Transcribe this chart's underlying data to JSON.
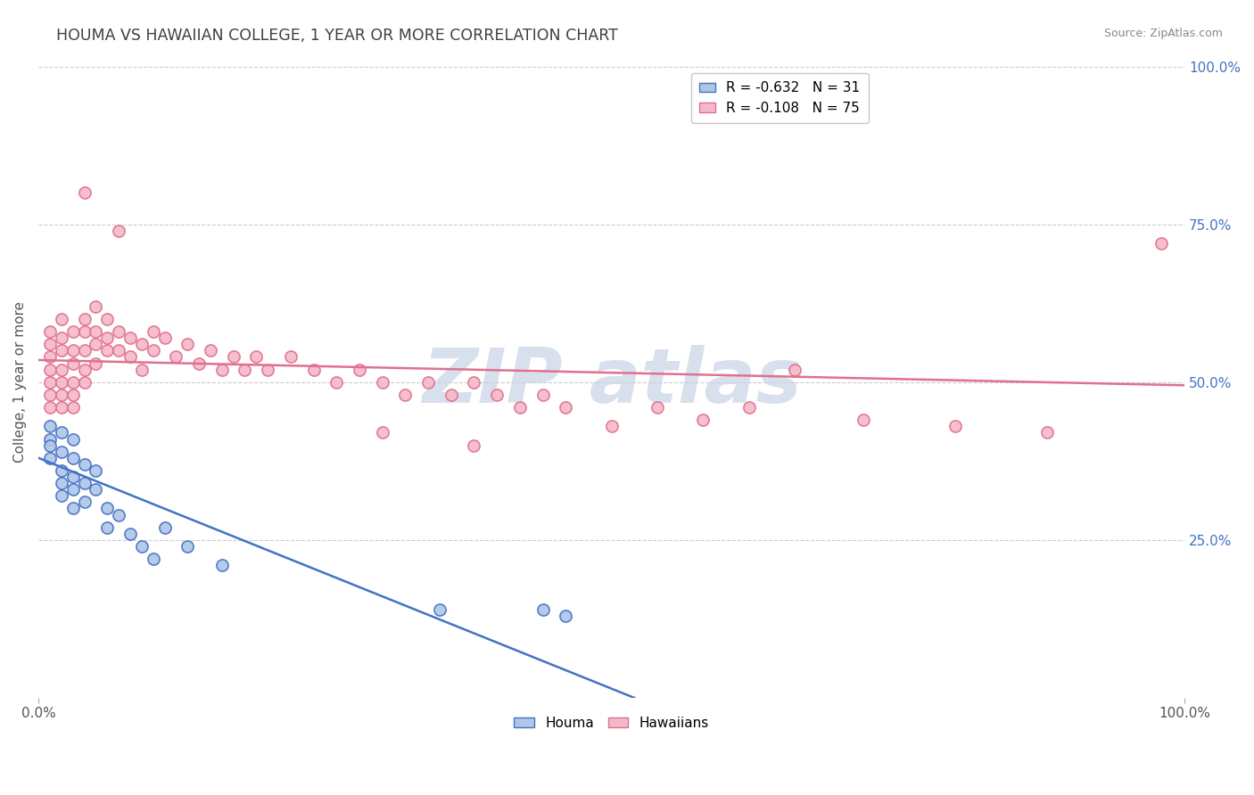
{
  "title": "HOUMA VS HAWAIIAN COLLEGE, 1 YEAR OR MORE CORRELATION CHART",
  "source": "Source: ZipAtlas.com",
  "ylabel": "College, 1 year or more",
  "xlim": [
    0.0,
    1.0
  ],
  "ylim": [
    0.0,
    1.0
  ],
  "houma_color": "#aec6e8",
  "hawaiians_color": "#f4b8c8",
  "houma_edge_color": "#4472c4",
  "hawaiians_edge_color": "#e07090",
  "houma_R": -0.632,
  "houma_N": 31,
  "hawaiians_R": -0.108,
  "hawaiians_N": 75,
  "houma_scatter": [
    [
      0.01,
      0.43
    ],
    [
      0.01,
      0.41
    ],
    [
      0.01,
      0.4
    ],
    [
      0.01,
      0.38
    ],
    [
      0.02,
      0.42
    ],
    [
      0.02,
      0.39
    ],
    [
      0.02,
      0.36
    ],
    [
      0.02,
      0.34
    ],
    [
      0.02,
      0.32
    ],
    [
      0.03,
      0.41
    ],
    [
      0.03,
      0.38
    ],
    [
      0.03,
      0.35
    ],
    [
      0.03,
      0.33
    ],
    [
      0.03,
      0.3
    ],
    [
      0.04,
      0.37
    ],
    [
      0.04,
      0.34
    ],
    [
      0.04,
      0.31
    ],
    [
      0.05,
      0.36
    ],
    [
      0.05,
      0.33
    ],
    [
      0.06,
      0.3
    ],
    [
      0.06,
      0.27
    ],
    [
      0.07,
      0.29
    ],
    [
      0.08,
      0.26
    ],
    [
      0.09,
      0.24
    ],
    [
      0.1,
      0.22
    ],
    [
      0.11,
      0.27
    ],
    [
      0.13,
      0.24
    ],
    [
      0.16,
      0.21
    ],
    [
      0.35,
      0.14
    ],
    [
      0.44,
      0.14
    ],
    [
      0.46,
      0.13
    ]
  ],
  "hawaiians_scatter": [
    [
      0.01,
      0.5
    ],
    [
      0.01,
      0.52
    ],
    [
      0.01,
      0.54
    ],
    [
      0.01,
      0.56
    ],
    [
      0.01,
      0.58
    ],
    [
      0.01,
      0.48
    ],
    [
      0.01,
      0.46
    ],
    [
      0.02,
      0.6
    ],
    [
      0.02,
      0.57
    ],
    [
      0.02,
      0.55
    ],
    [
      0.02,
      0.52
    ],
    [
      0.02,
      0.5
    ],
    [
      0.02,
      0.48
    ],
    [
      0.02,
      0.46
    ],
    [
      0.03,
      0.58
    ],
    [
      0.03,
      0.55
    ],
    [
      0.03,
      0.53
    ],
    [
      0.03,
      0.5
    ],
    [
      0.03,
      0.48
    ],
    [
      0.03,
      0.46
    ],
    [
      0.04,
      0.6
    ],
    [
      0.04,
      0.58
    ],
    [
      0.04,
      0.55
    ],
    [
      0.04,
      0.52
    ],
    [
      0.04,
      0.5
    ],
    [
      0.05,
      0.62
    ],
    [
      0.05,
      0.58
    ],
    [
      0.05,
      0.56
    ],
    [
      0.05,
      0.53
    ],
    [
      0.06,
      0.6
    ],
    [
      0.06,
      0.57
    ],
    [
      0.06,
      0.55
    ],
    [
      0.07,
      0.58
    ],
    [
      0.07,
      0.55
    ],
    [
      0.08,
      0.57
    ],
    [
      0.08,
      0.54
    ],
    [
      0.09,
      0.56
    ],
    [
      0.09,
      0.52
    ],
    [
      0.1,
      0.58
    ],
    [
      0.1,
      0.55
    ],
    [
      0.11,
      0.57
    ],
    [
      0.12,
      0.54
    ],
    [
      0.13,
      0.56
    ],
    [
      0.14,
      0.53
    ],
    [
      0.15,
      0.55
    ],
    [
      0.16,
      0.52
    ],
    [
      0.17,
      0.54
    ],
    [
      0.18,
      0.52
    ],
    [
      0.19,
      0.54
    ],
    [
      0.2,
      0.52
    ],
    [
      0.22,
      0.54
    ],
    [
      0.24,
      0.52
    ],
    [
      0.26,
      0.5
    ],
    [
      0.28,
      0.52
    ],
    [
      0.3,
      0.5
    ],
    [
      0.32,
      0.48
    ],
    [
      0.34,
      0.5
    ],
    [
      0.36,
      0.48
    ],
    [
      0.38,
      0.5
    ],
    [
      0.4,
      0.48
    ],
    [
      0.42,
      0.46
    ],
    [
      0.44,
      0.48
    ],
    [
      0.46,
      0.46
    ],
    [
      0.5,
      0.43
    ],
    [
      0.54,
      0.46
    ],
    [
      0.58,
      0.44
    ],
    [
      0.62,
      0.46
    ],
    [
      0.66,
      0.52
    ],
    [
      0.72,
      0.44
    ],
    [
      0.8,
      0.43
    ],
    [
      0.88,
      0.42
    ],
    [
      0.04,
      0.8
    ],
    [
      0.07,
      0.74
    ],
    [
      0.98,
      0.72
    ],
    [
      0.38,
      0.4
    ],
    [
      0.3,
      0.42
    ]
  ],
  "houma_line_x": [
    0.0,
    0.52
  ],
  "houma_line_y": [
    0.38,
    0.0
  ],
  "hawaiians_line_x": [
    0.0,
    1.0
  ],
  "hawaiians_line_y": [
    0.535,
    0.495
  ],
  "houma_line_color": "#4472c4",
  "hawaiians_line_color": "#e07090",
  "background_color": "#ffffff",
  "grid_color": "#cccccc",
  "title_color": "#404040",
  "watermark_text": "ZIP atlas",
  "watermark_color": "#c8d4e8",
  "right_tick_color": "#4472c4"
}
